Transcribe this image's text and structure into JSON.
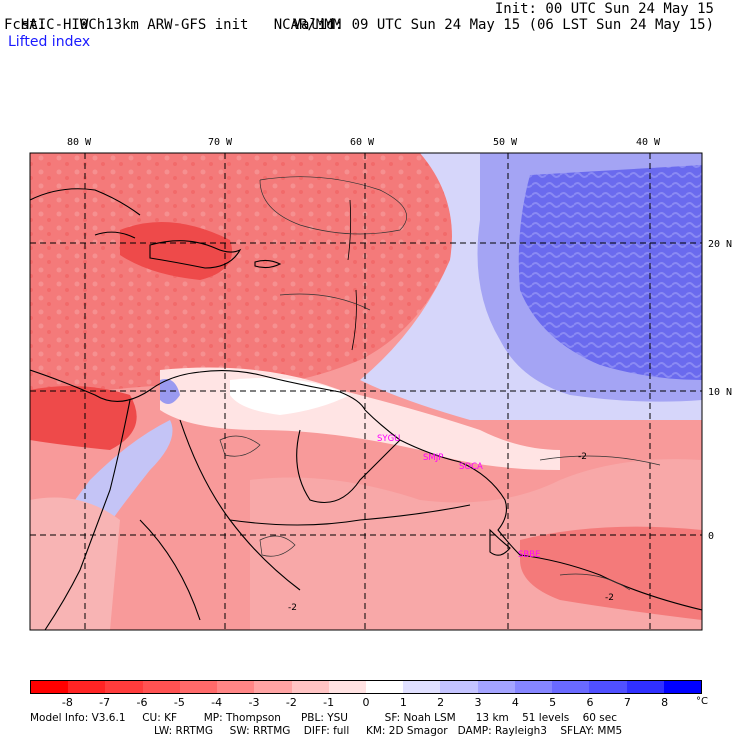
{
  "header": {
    "model": "HAIC-HIWC 13km ARW-GFS init",
    "org": "NCAR/MMM",
    "init": "Init: 00 UTC Sun 24 May 15",
    "fcst": "Fcst:    9 h",
    "valid": "Valid: 09 UTC Sun 24 May 15 (06 LST Sun 24 May 15)",
    "field": "Lifted index"
  },
  "map": {
    "lon_labels": [
      "80 W",
      "70 W",
      "60 W",
      "50 W",
      "40 W"
    ],
    "lat_labels": [
      "20 N",
      "10 N",
      "0"
    ],
    "stations": [
      "SYGU",
      "SMJP",
      "SOCA",
      "SBBE"
    ],
    "contour_label": "-2",
    "colors": {
      "strong_negative": "#ee3030",
      "negative": "#f47a7a",
      "weak_negative": "#f8b0b0",
      "neutral": "#ffffff",
      "weak_positive": "#c8c8f8",
      "positive": "#7a7aee",
      "strong_positive": "#4040e0",
      "station": "#ff00ff"
    }
  },
  "colorbar": {
    "ticks": [
      "-8",
      "-7",
      "-6",
      "-5",
      "-4",
      "-3",
      "-2",
      "-1",
      "0",
      "1",
      "2",
      "3",
      "4",
      "5",
      "6",
      "7",
      "8"
    ],
    "unit": "°C",
    "colors": [
      "#ff0000",
      "#ff2424",
      "#ff3c3c",
      "#ff5252",
      "#ff6a6a",
      "#ff8686",
      "#ffa4a4",
      "#ffc4c4",
      "#ffe2e2",
      "#ffffff",
      "#e0e0ff",
      "#c4c4ff",
      "#a4a4ff",
      "#8686ff",
      "#6a6aff",
      "#5050ff",
      "#3030ff",
      "#0000ff"
    ]
  },
  "info": {
    "line1": "Model Info: V3.6.1     CU: KF        MP: Thompson      PBL: YSU           SF: Noah LSM      13 km    51 levels    60 sec",
    "line2": "LW: RRTMG     SW: RRTMG    DIFF: full     KM: 2D Smagor   DAMP: Rayleigh3    SFLAY: MM5"
  }
}
